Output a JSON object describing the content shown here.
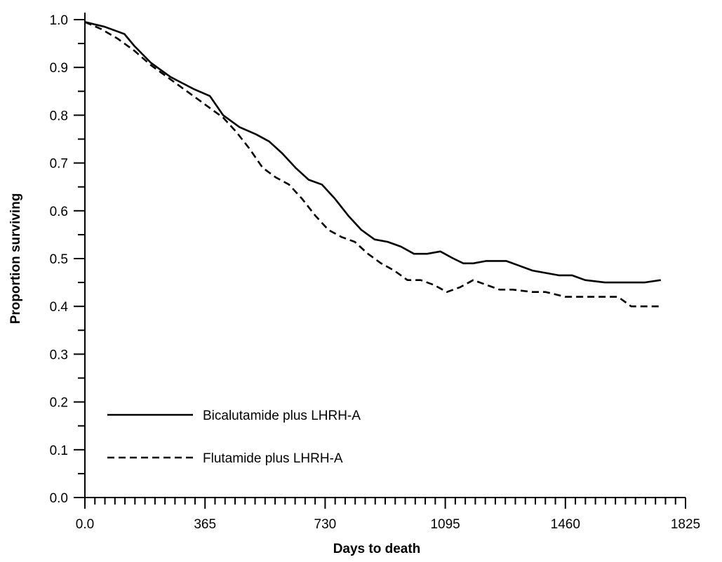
{
  "chart_data": {
    "type": "line",
    "title": "",
    "xlabel": "Days to death",
    "ylabel": "Proportion surviving",
    "xlim": [
      0,
      1825
    ],
    "ylim": [
      0,
      1.0
    ],
    "x_ticks": [
      0,
      365,
      730,
      1095,
      1460,
      1825
    ],
    "x_tick_labels": [
      "0.0",
      "365",
      "730",
      "1095",
      "1460",
      "1825"
    ],
    "y_ticks": [
      0,
      0.1,
      0.2,
      0.3,
      0.4,
      0.5,
      0.6,
      0.7,
      0.8,
      0.9,
      1.0
    ],
    "y_tick_labels": [
      "0.0",
      "0.1",
      "0.2",
      "0.3",
      "0.4",
      "0.5",
      "0.6",
      "0.7",
      "0.8",
      "0.9",
      "1.0"
    ],
    "grid": false,
    "legend_position": "bottom-left",
    "series": [
      {
        "name": "Bicalutamide plus LHRH-A",
        "line_style": "solid",
        "color": "#000000",
        "x": [
          0,
          60,
          120,
          150,
          200,
          260,
          330,
          380,
          420,
          470,
          520,
          560,
          600,
          640,
          680,
          720,
          760,
          800,
          840,
          880,
          920,
          960,
          1000,
          1040,
          1080,
          1120,
          1150,
          1180,
          1220,
          1280,
          1320,
          1360,
          1400,
          1440,
          1480,
          1520,
          1580,
          1640,
          1700,
          1750
        ],
        "y": [
          0.995,
          0.985,
          0.97,
          0.945,
          0.91,
          0.88,
          0.855,
          0.84,
          0.8,
          0.775,
          0.76,
          0.745,
          0.72,
          0.69,
          0.665,
          0.655,
          0.625,
          0.59,
          0.56,
          0.54,
          0.535,
          0.525,
          0.51,
          0.51,
          0.515,
          0.5,
          0.49,
          0.49,
          0.495,
          0.495,
          0.485,
          0.475,
          0.47,
          0.465,
          0.465,
          0.455,
          0.45,
          0.45,
          0.45,
          0.455
        ]
      },
      {
        "name": "Flutamide plus LHRH-A",
        "line_style": "dashed",
        "color": "#000000",
        "x": [
          0,
          50,
          100,
          150,
          200,
          260,
          320,
          380,
          420,
          460,
          500,
          540,
          580,
          620,
          660,
          700,
          740,
          780,
          820,
          860,
          900,
          940,
          980,
          1020,
          1060,
          1100,
          1140,
          1180,
          1220,
          1260,
          1300,
          1360,
          1400,
          1460,
          1520,
          1580,
          1620,
          1660,
          1720,
          1750
        ],
        "y": [
          0.995,
          0.98,
          0.96,
          0.935,
          0.905,
          0.875,
          0.845,
          0.815,
          0.795,
          0.765,
          0.73,
          0.69,
          0.67,
          0.655,
          0.625,
          0.59,
          0.56,
          0.545,
          0.535,
          0.51,
          0.49,
          0.475,
          0.455,
          0.455,
          0.445,
          0.43,
          0.44,
          0.455,
          0.445,
          0.435,
          0.435,
          0.43,
          0.43,
          0.42,
          0.42,
          0.42,
          0.42,
          0.4,
          0.4,
          0.4
        ]
      }
    ]
  }
}
